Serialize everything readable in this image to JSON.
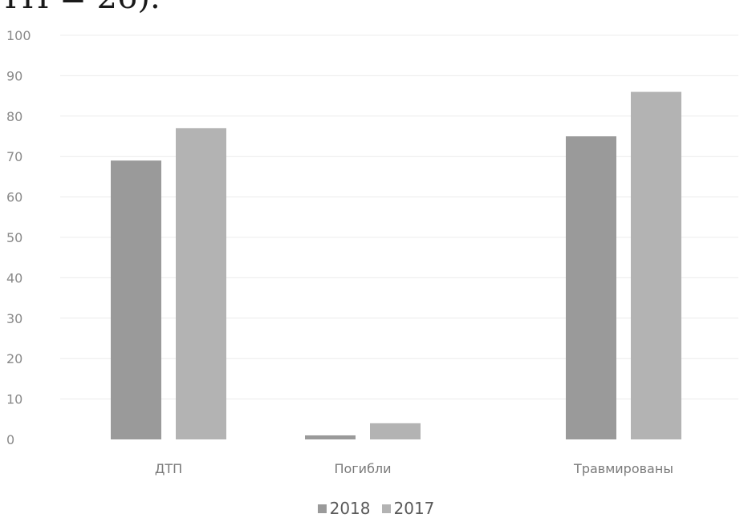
{
  "page": {
    "cut_text": "ТП = 26)."
  },
  "chart_data": {
    "type": "bar",
    "categories": [
      "ДТП",
      "Погибли",
      "Травмированы"
    ],
    "series": [
      {
        "name": "2018",
        "values": [
          69,
          1,
          75
        ],
        "color": "#9a9a9a"
      },
      {
        "name": "2017",
        "values": [
          77,
          4,
          86
        ],
        "color": "#b3b3b3"
      }
    ],
    "yticks": [
      "0",
      "10",
      "20",
      "30",
      "40",
      "50",
      "60",
      "70",
      "80",
      "90",
      "100"
    ],
    "ylim": [
      0,
      100
    ],
    "grid": true,
    "legend_position": "bottom",
    "title": "",
    "xlabel": "",
    "ylabel": ""
  }
}
